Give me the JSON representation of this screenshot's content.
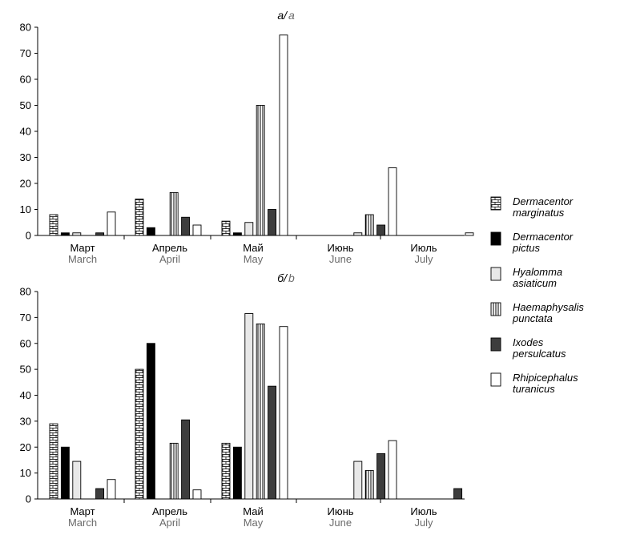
{
  "chart_data": [
    {
      "type": "bar",
      "title": "а/",
      "title_en": "a",
      "categories": [
        "Март",
        "Апрель",
        "Май",
        "Июнь",
        "Июль"
      ],
      "categories_en": [
        "March",
        "April",
        "May",
        "June",
        "July"
      ],
      "ylim": [
        0,
        80
      ],
      "yticks": [
        0,
        10,
        20,
        30,
        40,
        50,
        60,
        70,
        80
      ],
      "series": [
        {
          "name": "Dermacentor marginatus",
          "values": [
            8,
            14,
            5.5,
            0,
            0
          ]
        },
        {
          "name": "Dermacentor pictus",
          "values": [
            1,
            3,
            1,
            0,
            0
          ]
        },
        {
          "name": "Hyalomma asiaticum",
          "values": [
            1,
            0,
            5,
            1,
            0
          ]
        },
        {
          "name": "Haemaphysalis punctata",
          "values": [
            0,
            16.5,
            50,
            8,
            0
          ]
        },
        {
          "name": "Ixodes persulcatus",
          "values": [
            1,
            7,
            10,
            4,
            0
          ]
        },
        {
          "name": "Rhipicephalus turanicus",
          "values": [
            9,
            4,
            77,
            26,
            1
          ]
        }
      ]
    },
    {
      "type": "bar",
      "title": "б/",
      "title_en": "b",
      "categories": [
        "Март",
        "Апрель",
        "Май",
        "Июнь",
        "Июль"
      ],
      "categories_en": [
        "March",
        "April",
        "May",
        "June",
        "July"
      ],
      "ylim": [
        0,
        80
      ],
      "yticks": [
        0,
        10,
        20,
        30,
        40,
        50,
        60,
        70,
        80
      ],
      "series": [
        {
          "name": "Dermacentor marginatus",
          "values": [
            29,
            50,
            21.5,
            0,
            0
          ]
        },
        {
          "name": "Dermacentor pictus",
          "values": [
            20,
            60,
            20,
            0,
            0
          ]
        },
        {
          "name": "Hyalomma asiaticum",
          "values": [
            14.5,
            0,
            71.5,
            14.5,
            0
          ]
        },
        {
          "name": "Haemaphysalis punctata",
          "values": [
            0,
            21.5,
            67.5,
            11,
            0
          ]
        },
        {
          "name": "Ixodes persulcatus",
          "values": [
            4,
            30.5,
            43.5,
            17.5,
            4
          ]
        },
        {
          "name": "Rhipicephalus turanicus",
          "values": [
            7.5,
            3.5,
            66.5,
            22.5,
            0
          ]
        }
      ]
    }
  ],
  "legend": [
    {
      "line1": "Dermacentor",
      "line2": "marginatus",
      "pattern": "brick"
    },
    {
      "line1": "Dermacentor",
      "line2": "pictus",
      "pattern": "black"
    },
    {
      "line1": "Hyalomma",
      "line2": "asiaticum",
      "pattern": "light"
    },
    {
      "line1": "Haemaphysalis",
      "line2": "punctata",
      "pattern": "vstripes"
    },
    {
      "line1": "Ixodes",
      "line2": "persulcatus",
      "pattern": "dark"
    },
    {
      "line1": "Rhipicephalus",
      "line2": "turanicus",
      "pattern": "white"
    }
  ],
  "colors": {
    "black": "#000000",
    "light": "#e8e8e8",
    "dark": "#3d3d3d",
    "white": "#ffffff",
    "secondary_text": "#6b6b6b"
  }
}
